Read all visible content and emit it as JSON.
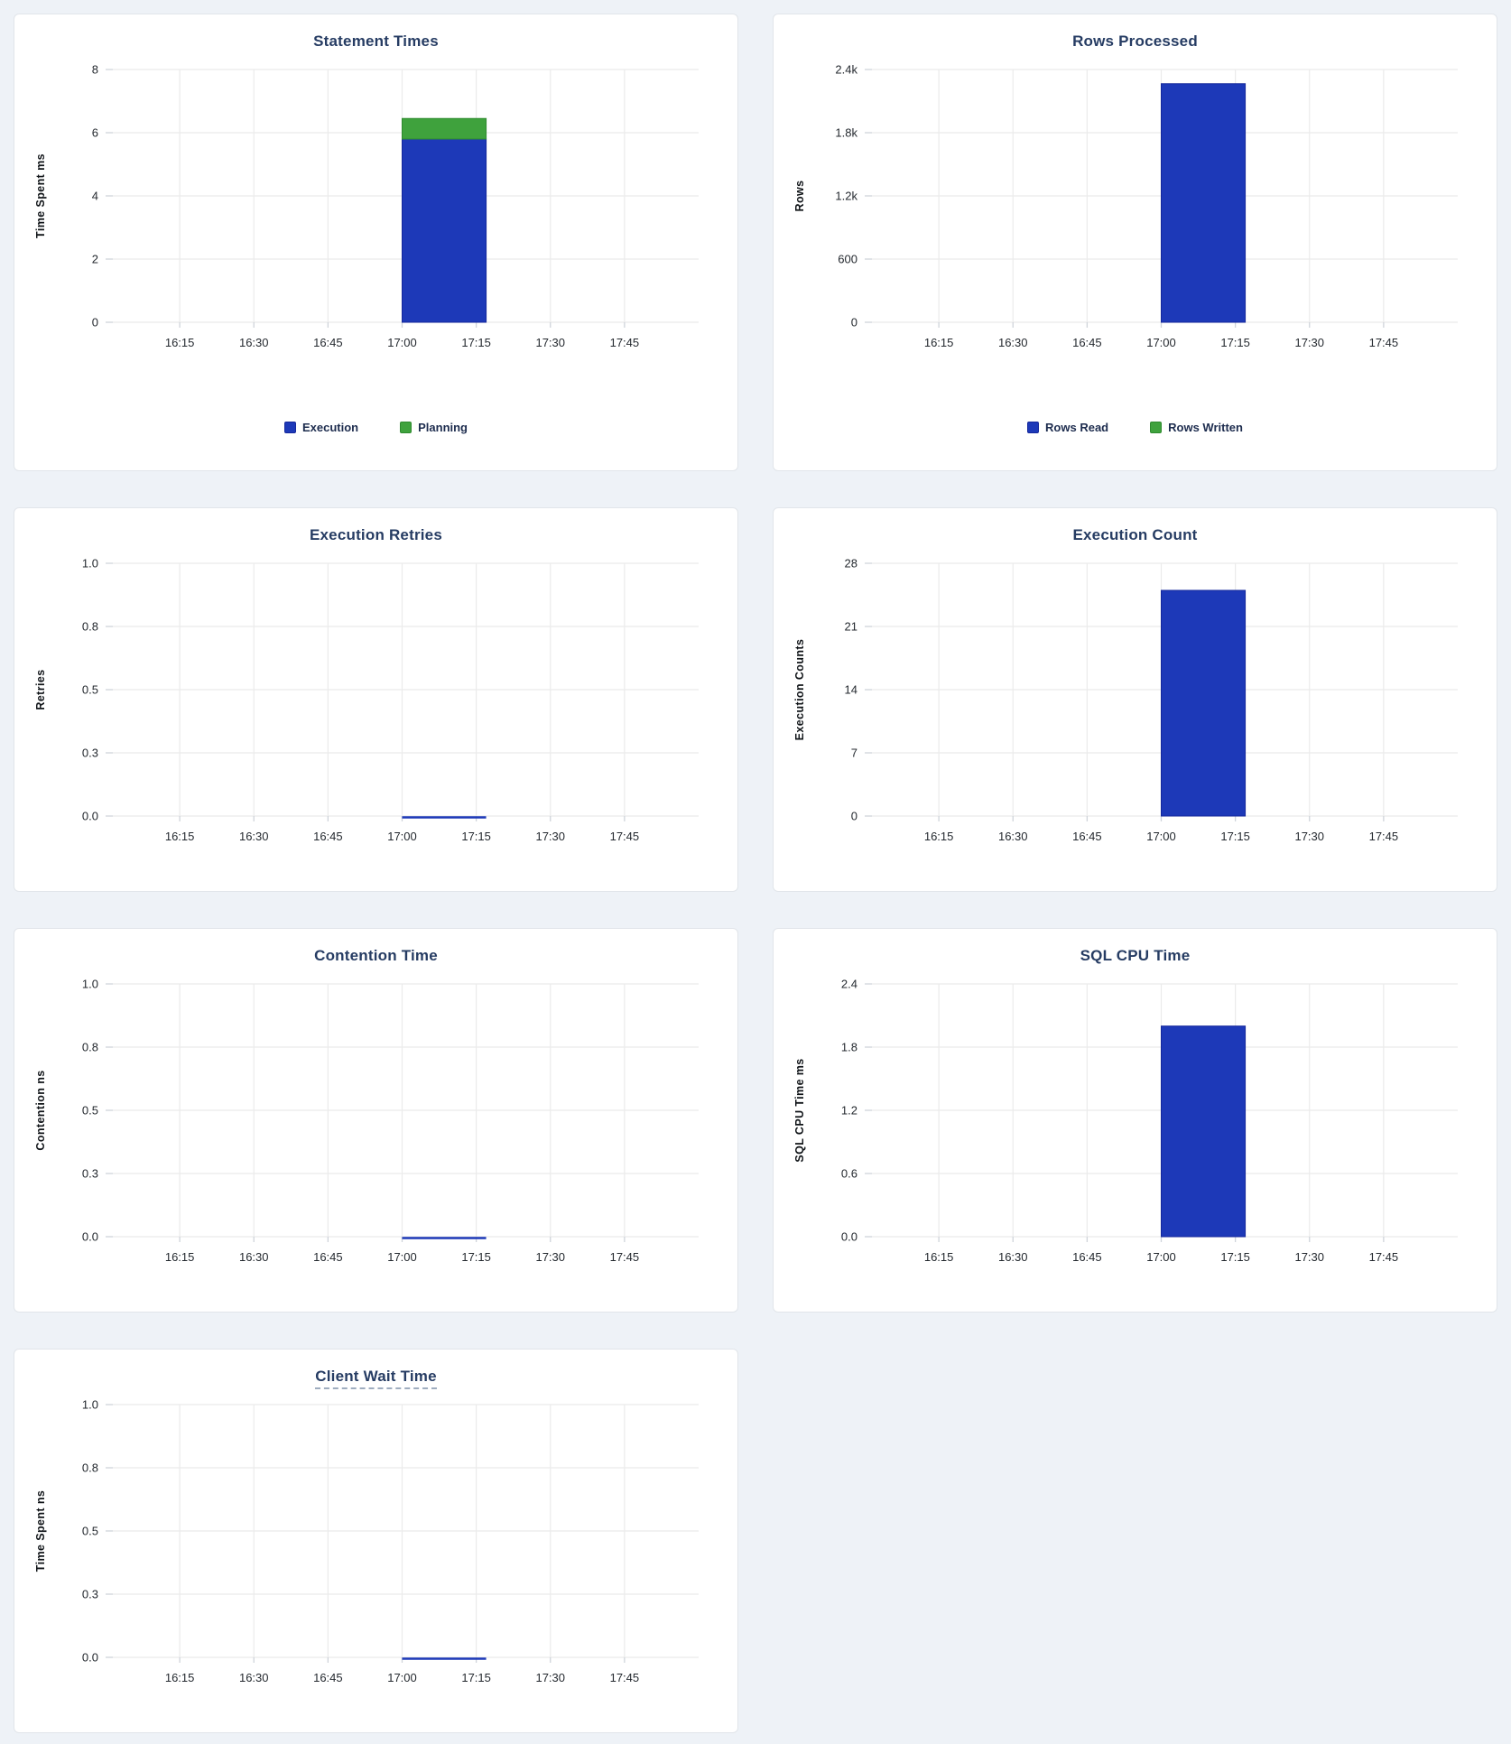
{
  "page": {
    "background": "#eef2f7"
  },
  "colors": {
    "blue": "#1d39b8",
    "blue_border": "#15289c",
    "green": "#3fa23d",
    "green_border": "#2e8a2e",
    "title": "#263c63",
    "tick_text": "#24292f",
    "grid": "#ebebeb",
    "tick_stub": "#cfd4da",
    "line_blue": "#1d39b8"
  },
  "x_axis": {
    "domain_minutes": [
      0,
      120
    ],
    "tick_minutes": [
      15,
      30,
      45,
      60,
      75,
      90,
      105
    ],
    "tick_labels": [
      "16:15",
      "16:30",
      "16:45",
      "17:00",
      "17:15",
      "17:30",
      "17:45"
    ]
  },
  "chart_data": [
    {
      "type": "bar",
      "title": "Statement Times",
      "title_underline": false,
      "ylabel": "Time Spent ms",
      "ymax": 8,
      "ytick_labels": [
        "0",
        "2",
        "4",
        "6",
        "8"
      ],
      "x_tick_labels": [
        "16:15",
        "16:30",
        "16:45",
        "17:00",
        "17:15",
        "17:30",
        "17:45"
      ],
      "bar": {
        "span_minutes": [
          60,
          77
        ],
        "segments": [
          {
            "name": "Execution",
            "value": 5.8,
            "color": "blue"
          },
          {
            "name": "Planning",
            "value": 0.65,
            "color": "green"
          }
        ]
      },
      "legend": [
        {
          "label": "Execution",
          "color": "blue"
        },
        {
          "label": "Planning",
          "color": "green"
        }
      ],
      "legend_position": "bottom-center",
      "grid": true
    },
    {
      "type": "bar",
      "title": "Rows Processed",
      "title_underline": false,
      "ylabel": "Rows",
      "ymax": 2400,
      "ytick_labels": [
        "0",
        "600",
        "1.2k",
        "1.8k",
        "2.4k"
      ],
      "x_tick_labels": [
        "16:15",
        "16:30",
        "16:45",
        "17:00",
        "17:15",
        "17:30",
        "17:45"
      ],
      "bar": {
        "span_minutes": [
          60,
          77
        ],
        "segments": [
          {
            "name": "Rows Read",
            "value": 2265,
            "color": "blue"
          },
          {
            "name": "Rows Written",
            "value": 0,
            "color": "green"
          }
        ]
      },
      "legend": [
        {
          "label": "Rows Read",
          "color": "blue"
        },
        {
          "label": "Rows Written",
          "color": "green"
        }
      ],
      "legend_position": "bottom-center",
      "grid": true
    },
    {
      "type": "line",
      "title": "Execution Retries",
      "title_underline": false,
      "ylabel": "Retries",
      "ymax": 1.0,
      "ytick_labels": [
        "0.0",
        "0.3",
        "0.5",
        "0.8",
        "1.0"
      ],
      "x_tick_labels": [
        "16:15",
        "16:30",
        "16:45",
        "17:00",
        "17:15",
        "17:30",
        "17:45"
      ],
      "line": {
        "span_minutes": [
          60,
          77
        ],
        "value": 0
      },
      "grid": true
    },
    {
      "type": "bar",
      "title": "Execution Count",
      "title_underline": false,
      "ylabel": "Execution Counts",
      "ymax": 28,
      "ytick_labels": [
        "0",
        "7",
        "14",
        "21",
        "28"
      ],
      "x_tick_labels": [
        "16:15",
        "16:30",
        "16:45",
        "17:00",
        "17:15",
        "17:30",
        "17:45"
      ],
      "bar": {
        "span_minutes": [
          60,
          77
        ],
        "segments": [
          {
            "name": "Execution Count",
            "value": 25,
            "color": "blue"
          }
        ]
      },
      "grid": true
    },
    {
      "type": "line",
      "title": "Contention Time",
      "title_underline": false,
      "ylabel": "Contention ns",
      "ymax": 1.0,
      "ytick_labels": [
        "0.0",
        "0.3",
        "0.5",
        "0.8",
        "1.0"
      ],
      "x_tick_labels": [
        "16:15",
        "16:30",
        "16:45",
        "17:00",
        "17:15",
        "17:30",
        "17:45"
      ],
      "line": {
        "span_minutes": [
          60,
          77
        ],
        "value": 0
      },
      "grid": true
    },
    {
      "type": "bar",
      "title": "SQL CPU Time",
      "title_underline": false,
      "ylabel": "SQL CPU Time ms",
      "ymax": 2.4,
      "ytick_labels": [
        "0.0",
        "0.6",
        "1.2",
        "1.8",
        "2.4"
      ],
      "x_tick_labels": [
        "16:15",
        "16:30",
        "16:45",
        "17:00",
        "17:15",
        "17:30",
        "17:45"
      ],
      "bar": {
        "span_minutes": [
          60,
          77
        ],
        "segments": [
          {
            "name": "SQL CPU Time",
            "value": 2.0,
            "color": "blue"
          }
        ]
      },
      "grid": true
    },
    {
      "type": "line",
      "title": "Client Wait Time",
      "title_underline": true,
      "ylabel": "Time Spent ns",
      "ymax": 1.0,
      "ytick_labels": [
        "0.0",
        "0.3",
        "0.5",
        "0.8",
        "1.0"
      ],
      "x_tick_labels": [
        "16:15",
        "16:30",
        "16:45",
        "17:00",
        "17:15",
        "17:30",
        "17:45"
      ],
      "line": {
        "span_minutes": [
          60,
          77
        ],
        "value": 0
      },
      "grid": true
    }
  ]
}
